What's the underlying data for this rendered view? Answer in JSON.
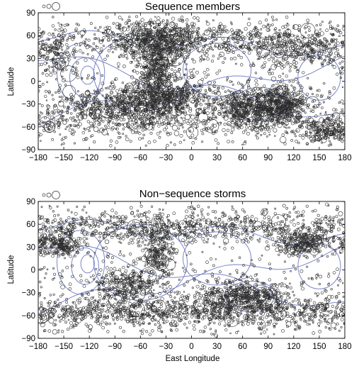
{
  "figure": {
    "colors": {
      "markers": "#2b2b2b",
      "contours": "#7b86c9",
      "axes": "#000000"
    }
  },
  "chart_data": [
    {
      "type": "scatter",
      "title": "Sequence members",
      "xlabel": "",
      "ylabel": "Latitude",
      "xlim": [
        -180,
        180
      ],
      "ylim": [
        -90,
        90
      ],
      "xticks": [
        -180,
        -150,
        -120,
        -90,
        -60,
        -30,
        0,
        30,
        60,
        90,
        120,
        150,
        180
      ],
      "yticks": [
        90,
        60,
        30,
        0,
        -30,
        -60,
        -90
      ],
      "marker": "open-circle",
      "marker_color": "#2b2b2b",
      "contour_color": "#7b86c9",
      "legend": "top-left (marker size key, no text)",
      "density_clusters": [
        {
          "lon": -40,
          "lat": 55,
          "spread_lon": 30,
          "spread_lat": 12,
          "weight": 3
        },
        {
          "lon": -40,
          "lat": 20,
          "spread_lon": 12,
          "spread_lat": 18,
          "weight": 2
        },
        {
          "lon": -35,
          "lat": -20,
          "spread_lon": 30,
          "spread_lat": 12,
          "weight": 3
        },
        {
          "lon": -80,
          "lat": -35,
          "spread_lon": 45,
          "spread_lat": 12,
          "weight": 3
        },
        {
          "lon": 70,
          "lat": -35,
          "spread_lon": 25,
          "spread_lat": 12,
          "weight": 3
        },
        {
          "lon": 110,
          "lat": -30,
          "spread_lon": 15,
          "spread_lat": 12,
          "weight": 2
        },
        {
          "lon": 120,
          "lat": 45,
          "spread_lon": 30,
          "spread_lat": 15,
          "weight": 2
        },
        {
          "lon": -160,
          "lat": 40,
          "spread_lon": 15,
          "spread_lat": 20,
          "weight": 1
        },
        {
          "lon": 0,
          "lat": 55,
          "spread_lon": 80,
          "spread_lat": 12,
          "weight": 2
        },
        {
          "lon": 0,
          "lat": -55,
          "spread_lon": 120,
          "spread_lat": 10,
          "weight": 2
        },
        {
          "lon": 160,
          "lat": -65,
          "spread_lon": 15,
          "spread_lat": 8,
          "weight": 1
        }
      ]
    },
    {
      "type": "scatter",
      "title": "Non−sequence storms",
      "xlabel": "East Longitude",
      "ylabel": "Latitude",
      "xlim": [
        -180,
        180
      ],
      "ylim": [
        -90,
        90
      ],
      "xticks": [
        -180,
        -150,
        -120,
        -90,
        -60,
        -30,
        0,
        30,
        60,
        90,
        120,
        150,
        180
      ],
      "yticks": [
        90,
        60,
        30,
        0,
        -30,
        -60,
        -90
      ],
      "marker": "open-circle",
      "marker_color": "#2b2b2b",
      "contour_color": "#7b86c9",
      "legend": "top-left (marker size key, no text)",
      "density_clusters": [
        {
          "lon": 0,
          "lat": 55,
          "spread_lon": 120,
          "spread_lat": 10,
          "weight": 3
        },
        {
          "lon": 0,
          "lat": -55,
          "spread_lon": 120,
          "spread_lat": 10,
          "weight": 4
        },
        {
          "lon": -160,
          "lat": 35,
          "spread_lon": 15,
          "spread_lat": 8,
          "weight": 1
        },
        {
          "lon": 130,
          "lat": 35,
          "spread_lon": 15,
          "spread_lat": 8,
          "weight": 1
        },
        {
          "lon": 60,
          "lat": -35,
          "spread_lon": 25,
          "spread_lat": 10,
          "weight": 2
        },
        {
          "lon": -75,
          "lat": -20,
          "spread_lon": 20,
          "spread_lat": 12,
          "weight": 1
        },
        {
          "lon": -40,
          "lat": 20,
          "spread_lon": 10,
          "spread_lat": 20,
          "weight": 1
        }
      ]
    }
  ]
}
